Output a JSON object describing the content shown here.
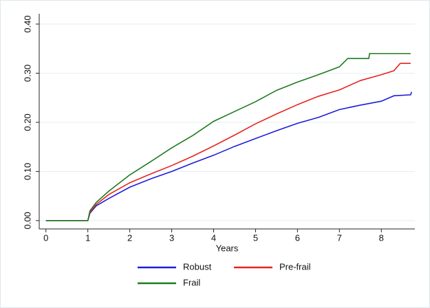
{
  "chart_data": {
    "type": "line",
    "x_label": "Years",
    "xlim": [
      -0.16,
      8.8
    ],
    "ylim": [
      -0.017,
      0.421
    ],
    "xticks": [
      0,
      1,
      2,
      3,
      4,
      5,
      6,
      7,
      8
    ],
    "yticks": [
      {
        "value": 0,
        "label": "0.00"
      },
      {
        "value": 0.1,
        "label": "0.10"
      },
      {
        "value": 0.2,
        "label": "0.20"
      },
      {
        "value": 0.3,
        "label": "0.30"
      },
      {
        "value": 0.4,
        "label": "0.40"
      }
    ],
    "grid": true,
    "legend": "bottom",
    "series": [
      {
        "name": "Robust",
        "color": "#1c1cdc",
        "x": [
          0,
          1,
          1.05,
          1.2,
          1.5,
          2,
          2.5,
          3,
          3.5,
          4,
          4.5,
          5,
          5.5,
          6,
          6.5,
          7,
          7.5,
          8,
          8.3,
          8.7,
          8.72
        ],
        "values": [
          0,
          0,
          0.015,
          0.03,
          0.045,
          0.068,
          0.085,
          0.1,
          0.117,
          0.133,
          0.151,
          0.167,
          0.183,
          0.198,
          0.21,
          0.226,
          0.235,
          0.243,
          0.254,
          0.256,
          0.262
        ]
      },
      {
        "name": "Pre-frail",
        "color": "#e8231e",
        "x": [
          0,
          1,
          1.05,
          1.2,
          1.5,
          2,
          2.5,
          3,
          3.5,
          4,
          4.5,
          5,
          5.5,
          6,
          6.5,
          7,
          7.5,
          8,
          8.3,
          8.45,
          8.7
        ],
        "values": [
          0,
          0,
          0.017,
          0.033,
          0.053,
          0.077,
          0.095,
          0.112,
          0.131,
          0.152,
          0.174,
          0.197,
          0.217,
          0.236,
          0.253,
          0.266,
          0.285,
          0.297,
          0.305,
          0.32,
          0.32
        ]
      },
      {
        "name": "Frail",
        "color": "#1e7a1e",
        "x": [
          0,
          1,
          1.05,
          1.2,
          1.5,
          2,
          2.5,
          3,
          3.5,
          4,
          4.5,
          5,
          5.5,
          6,
          6.5,
          7,
          7.2,
          7.7,
          7.72,
          8.7
        ],
        "values": [
          0,
          0,
          0.02,
          0.037,
          0.06,
          0.093,
          0.12,
          0.148,
          0.173,
          0.202,
          0.222,
          0.242,
          0.265,
          0.282,
          0.297,
          0.313,
          0.33,
          0.33,
          0.34,
          0.34
        ]
      }
    ]
  }
}
